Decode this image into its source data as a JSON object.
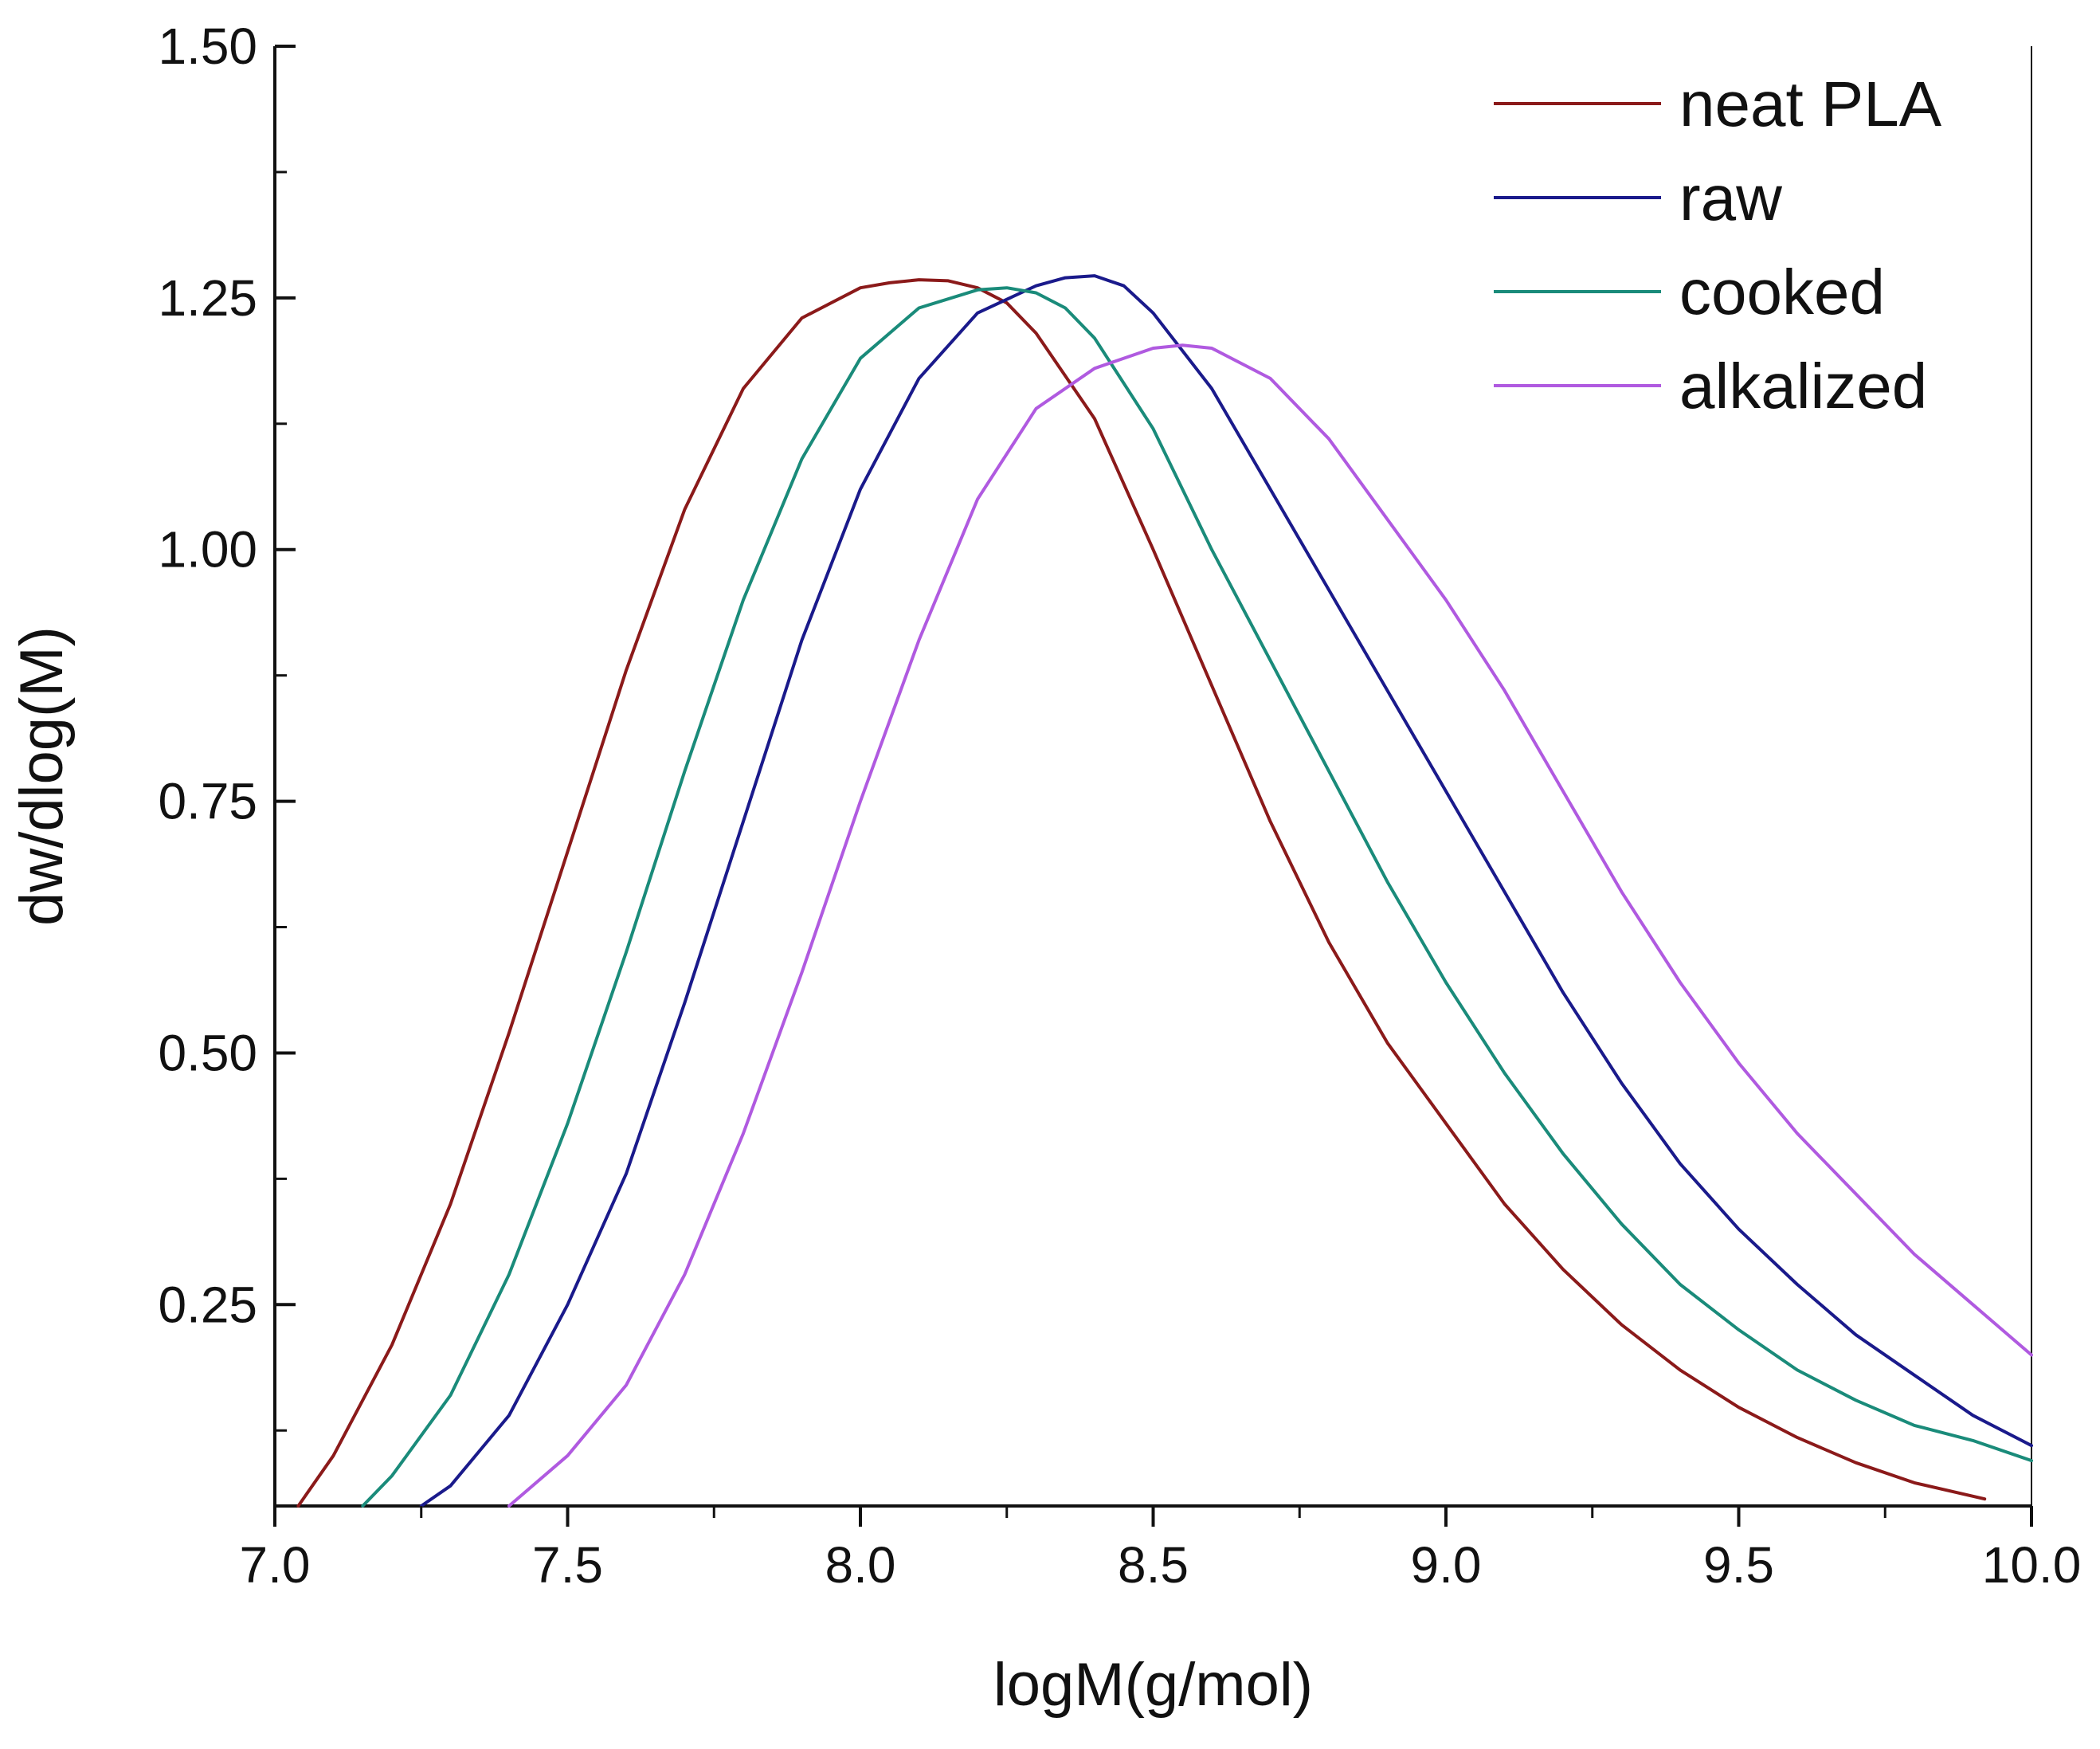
{
  "chart_data": {
    "type": "line",
    "title": "",
    "xlabel": "logM(g/mol)",
    "ylabel": "dw/dlog(M)",
    "xlim": [
      7.0,
      10.0
    ],
    "ylim": [
      0.05,
      1.5
    ],
    "xticks": [
      7.0,
      7.5,
      8.0,
      8.5,
      9.0,
      9.5,
      10.0
    ],
    "xtick_labels": [
      "7.0",
      "7.5",
      "8.0",
      "8.5",
      "9.0",
      "9.5",
      "10.0"
    ],
    "yticks": [
      0.25,
      0.5,
      0.75,
      1.0,
      1.25,
      1.5
    ],
    "ytick_labels": [
      "0.25",
      "0.50",
      "0.75",
      "1.00",
      "1.25",
      "1.50"
    ],
    "grid": false,
    "legend_position": "top-right",
    "series": [
      {
        "name": "neat PLA",
        "color": "#8B1A1A",
        "x": [
          7.04,
          7.1,
          7.2,
          7.3,
          7.4,
          7.5,
          7.6,
          7.7,
          7.8,
          7.9,
          8.0,
          8.05,
          8.1,
          8.15,
          8.2,
          8.25,
          8.3,
          8.4,
          8.5,
          8.6,
          8.7,
          8.8,
          8.9,
          9.0,
          9.1,
          9.2,
          9.3,
          9.4,
          9.5,
          9.6,
          9.7,
          9.8,
          9.92
        ],
        "y": [
          0.05,
          0.1,
          0.21,
          0.35,
          0.52,
          0.7,
          0.88,
          1.04,
          1.16,
          1.23,
          1.26,
          1.265,
          1.268,
          1.267,
          1.26,
          1.245,
          1.215,
          1.13,
          1.0,
          0.865,
          0.73,
          0.61,
          0.51,
          0.43,
          0.35,
          0.285,
          0.23,
          0.185,
          0.148,
          0.118,
          0.093,
          0.073,
          0.057
        ]
      },
      {
        "name": "raw",
        "color": "#1A1A8B",
        "x": [
          7.25,
          7.3,
          7.4,
          7.5,
          7.6,
          7.7,
          7.8,
          7.9,
          8.0,
          8.1,
          8.2,
          8.3,
          8.35,
          8.4,
          8.45,
          8.5,
          8.6,
          8.7,
          8.8,
          8.9,
          9.0,
          9.1,
          9.2,
          9.3,
          9.4,
          9.5,
          9.6,
          9.7,
          9.8,
          9.9,
          10.0
        ],
        "y": [
          0.05,
          0.07,
          0.14,
          0.25,
          0.38,
          0.55,
          0.73,
          0.91,
          1.06,
          1.17,
          1.235,
          1.262,
          1.27,
          1.272,
          1.262,
          1.235,
          1.16,
          1.06,
          0.96,
          0.86,
          0.76,
          0.66,
          0.56,
          0.47,
          0.39,
          0.325,
          0.27,
          0.22,
          0.18,
          0.14,
          0.11
        ]
      },
      {
        "name": "cooked",
        "color": "#1A8B7A",
        "x": [
          7.15,
          7.2,
          7.3,
          7.4,
          7.5,
          7.6,
          7.7,
          7.8,
          7.9,
          8.0,
          8.1,
          8.2,
          8.25,
          8.3,
          8.35,
          8.4,
          8.5,
          8.6,
          8.7,
          8.8,
          8.9,
          9.0,
          9.1,
          9.2,
          9.3,
          9.4,
          9.5,
          9.6,
          9.7,
          9.8,
          9.9,
          10.0
        ],
        "y": [
          0.05,
          0.08,
          0.16,
          0.28,
          0.43,
          0.6,
          0.78,
          0.95,
          1.09,
          1.19,
          1.24,
          1.258,
          1.26,
          1.255,
          1.24,
          1.21,
          1.12,
          1.0,
          0.89,
          0.78,
          0.67,
          0.57,
          0.48,
          0.4,
          0.33,
          0.27,
          0.225,
          0.185,
          0.155,
          0.13,
          0.115,
          0.095
        ]
      },
      {
        "name": "alkalized",
        "color": "#B05AE0",
        "x": [
          7.4,
          7.5,
          7.6,
          7.7,
          7.8,
          7.9,
          8.0,
          8.1,
          8.2,
          8.3,
          8.4,
          8.5,
          8.55,
          8.6,
          8.7,
          8.8,
          8.9,
          9.0,
          9.1,
          9.2,
          9.3,
          9.4,
          9.5,
          9.6,
          9.7,
          9.8,
          9.9,
          10.0
        ],
        "y": [
          0.05,
          0.1,
          0.17,
          0.28,
          0.42,
          0.58,
          0.75,
          0.91,
          1.05,
          1.14,
          1.18,
          1.2,
          1.203,
          1.2,
          1.17,
          1.11,
          1.03,
          0.95,
          0.86,
          0.76,
          0.66,
          0.57,
          0.49,
          0.42,
          0.36,
          0.3,
          0.25,
          0.2
        ]
      }
    ]
  }
}
